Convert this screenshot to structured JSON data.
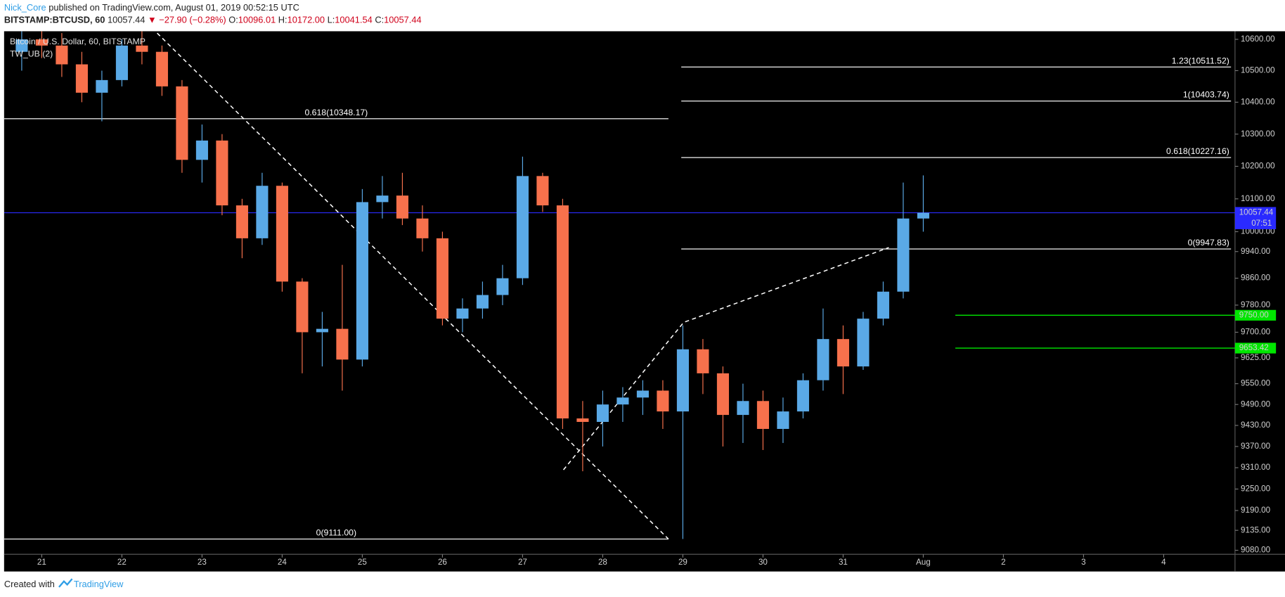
{
  "header": {
    "author": "Nick_Core",
    "published": "published on TradingView.com, August 01, 2019 00:52:15 UTC",
    "symbol": "BITSTAMP:BTCUSD, 60",
    "last": "10057.44",
    "change": "▼ −27.90 (−0.28%)",
    "ohlc": [
      {
        "label": "O:",
        "value": "10096.01"
      },
      {
        "label": "H:",
        "value": "10172.00"
      },
      {
        "label": "L:",
        "value": "10041.54"
      },
      {
        "label": "C:",
        "value": "10057.44"
      }
    ]
  },
  "footer": {
    "text": "Created with",
    "brand": "TradingView"
  },
  "chart_data": {
    "type": "candlestick",
    "title": "Bitcoin / U.S. Dollar, 60, BITSTAMP",
    "indicator": "TW_UB (2)",
    "log": true,
    "grid": false,
    "up_color": "#5aa9e6",
    "down_color": "#f7714c",
    "xlim": [
      20.53,
      35.89
    ],
    "ylim": [
      9069,
      10626
    ],
    "xticks": [
      21,
      22,
      23,
      24,
      25,
      26,
      27,
      28,
      29,
      30,
      31,
      {
        "value": 32,
        "label": "Aug"
      },
      {
        "value": 33,
        "label": "2"
      },
      {
        "value": 34,
        "label": "3"
      },
      {
        "value": 35,
        "label": "4"
      }
    ],
    "yticks": [
      {
        "value": 10600,
        "label": "10600.00"
      },
      {
        "value": 10500,
        "label": "10500.00"
      },
      {
        "value": 10400,
        "label": "10400.00"
      },
      {
        "value": 10300,
        "label": "10300.00"
      },
      {
        "value": 10200,
        "label": "10200.00"
      },
      {
        "value": 10100,
        "label": "10100.00"
      },
      {
        "value": 10000,
        "label": "10000.00"
      },
      {
        "value": 9940,
        "label": "9940.00"
      },
      {
        "value": 9860,
        "label": "9860.00"
      },
      {
        "value": 9780,
        "label": "9780.00"
      },
      {
        "value": 9700,
        "label": "9700.00"
      },
      {
        "value": 9625,
        "label": "9625.00"
      },
      {
        "value": 9550,
        "label": "9550.00"
      },
      {
        "value": 9490,
        "label": "9490.00"
      },
      {
        "value": 9430,
        "label": "9430.00"
      },
      {
        "value": 9370,
        "label": "9370.00"
      },
      {
        "value": 9310,
        "label": "9310.00"
      },
      {
        "value": 9250,
        "label": "9250.00"
      },
      {
        "value": 9190,
        "label": "9190.00"
      },
      {
        "value": 9135,
        "label": "9135.00"
      },
      {
        "value": 9080,
        "label": "9080.00"
      }
    ],
    "x": [
      20.75,
      21,
      21.25,
      21.5,
      21.75,
      22,
      22.25,
      22.5,
      22.75,
      23,
      23.25,
      23.5,
      23.75,
      24,
      24.25,
      24.5,
      24.75,
      25,
      25.25,
      25.5,
      25.75,
      26,
      26.25,
      26.5,
      26.75,
      27,
      27.25,
      27.5,
      27.75,
      28,
      28.25,
      28.5,
      28.75,
      29,
      29.25,
      29.5,
      29.75,
      30,
      30.25,
      30.5,
      30.75,
      31,
      31.25,
      31.5,
      31.75,
      32
    ],
    "open": [
      10560,
      10600,
      10580,
      10520,
      10430,
      10470,
      10580,
      10560,
      10450,
      10220,
      10280,
      10080,
      9980,
      10140,
      9850,
      9700,
      9710,
      9620,
      10090,
      10110,
      10040,
      9980,
      9740,
      9770,
      9810,
      9860,
      10170,
      10080,
      9450,
      9440,
      9490,
      9510,
      9530,
      9470,
      9650,
      9580,
      9460,
      9500,
      9420,
      9470,
      9560,
      9680,
      9600,
      9740,
      9820,
      10040
    ],
    "high": [
      10640,
      10650,
      10620,
      10560,
      10500,
      10600,
      10650,
      10580,
      10470,
      10330,
      10300,
      10100,
      10180,
      10150,
      9860,
      9760,
      9900,
      10130,
      10170,
      10180,
      10080,
      10000,
      9800,
      9850,
      9900,
      10230,
      10180,
      10100,
      9500,
      9530,
      9540,
      9560,
      9560,
      9720,
      9680,
      9600,
      9550,
      9530,
      9510,
      9580,
      9770,
      9720,
      9760,
      9850,
      10150,
      10172
    ],
    "low": [
      10500,
      10540,
      10480,
      10400,
      10340,
      10450,
      10520,
      10420,
      10180,
      10150,
      10050,
      9920,
      9960,
      9820,
      9580,
      9600,
      9530,
      9600,
      10040,
      10020,
      9940,
      9720,
      9700,
      9740,
      9780,
      9840,
      10060,
      9420,
      9300,
      9370,
      9440,
      9460,
      9420,
      9111,
      9520,
      9370,
      9380,
      9360,
      9380,
      9450,
      9530,
      9520,
      9590,
      9720,
      9800,
      10000
    ],
    "close": [
      10600,
      10580,
      10520,
      10430,
      10470,
      10580,
      10560,
      10450,
      10220,
      10280,
      10080,
      9980,
      10140,
      9850,
      9700,
      9710,
      9620,
      10090,
      10110,
      10040,
      9980,
      9740,
      9770,
      9810,
      9860,
      10170,
      10080,
      9450,
      9440,
      9490,
      9510,
      9530,
      9470,
      9650,
      9580,
      9460,
      9500,
      9420,
      9470,
      9560,
      9680,
      9600,
      9740,
      9820,
      10040,
      10057.44
    ],
    "fib_levels": [
      {
        "x": [
          20.53,
          28.82
        ],
        "value": 10348.17,
        "label": "0.618(10348.17)",
        "anchor": "middle"
      },
      {
        "x": [
          20.53,
          28.82
        ],
        "value": 9111,
        "label": "0(9111.00)",
        "anchor": "middle"
      },
      {
        "x": [
          28.98,
          35.84
        ],
        "value": 10511.52,
        "label": "1.23(10511.52)",
        "anchor": "end"
      },
      {
        "x": [
          28.98,
          35.84
        ],
        "value": 10403.74,
        "label": "1(10403.74)",
        "anchor": "end"
      },
      {
        "x": [
          28.98,
          35.84
        ],
        "value": 10227.16,
        "label": "0.618(10227.16)",
        "anchor": "end"
      },
      {
        "x": [
          28.98,
          35.84
        ],
        "value": 9947.83,
        "label": "0(9947.83)",
        "anchor": "end"
      }
    ],
    "levels": [
      {
        "x": [
          32.4,
          35.89
        ],
        "value": 9750,
        "label": "9750.00",
        "color": "#00e600"
      },
      {
        "x": [
          32.4,
          35.89
        ],
        "value": 9653.42,
        "label": "9653.42",
        "color": "#00e600"
      }
    ],
    "trend_lines": [
      {
        "x": [
          22.44,
          28.82
        ],
        "y": [
          10620,
          9111
        ]
      },
      {
        "x": [
          27.51,
          29.01,
          31.57
        ],
        "y": [
          9304,
          9729,
          9952
        ]
      }
    ],
    "current_price": {
      "value": 10057.44,
      "label": "10057.44",
      "color": "#2a2aff",
      "countdown": "07:51"
    }
  }
}
